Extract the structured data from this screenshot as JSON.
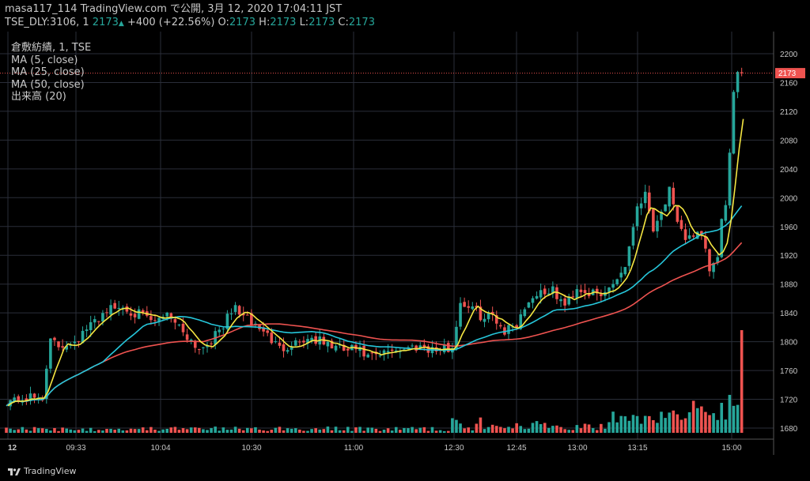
{
  "header": {
    "published_line": "masa117_114 TradingView.com で公開, 3月 12, 2020 17:04:11 JST",
    "symbol": "TSE_DLY:3106, 1",
    "last_price": "2173",
    "up_arrow": "▲",
    "change": "+400 (+22.56%)",
    "o_label": "O:",
    "o_value": "2173",
    "h_label": "H:",
    "h_value": "2173",
    "l_label": "L:",
    "l_value": "2173",
    "c_label": "C:",
    "c_value": "2173"
  },
  "legend": {
    "title": "倉敷紡績, 1, TSE",
    "ma5": "MA (5, close)",
    "ma25": "MA (25, close)",
    "ma50": "MA (50, close)",
    "volume": "出来高 (20)"
  },
  "footer": {
    "brand": "TradingView",
    "logo_icon": "tradingview-logo-icon"
  },
  "colors": {
    "background": "#000000",
    "up": "#26a69a",
    "down": "#ef5350",
    "ma5": "#f5e642",
    "ma25": "#26c6da",
    "ma50": "#ef5350",
    "grid": "#2a2e39",
    "price_tag": "#ef5350"
  },
  "chart_data": {
    "type": "candlestick",
    "title": "倉敷紡績, 1, TSE",
    "ylim": [
      1660,
      2220
    ],
    "y_ticks": [
      1680,
      1720,
      1760,
      1800,
      1840,
      1880,
      1920,
      1960,
      2000,
      2040,
      2080,
      2120,
      2160,
      2200
    ],
    "x_ticks": [
      "12",
      "09:33",
      "10:04",
      "10:30",
      "11:00",
      "12:30",
      "12:45",
      "13:00",
      "13:15",
      "15:00"
    ],
    "last_price_label": "2173",
    "grid": true,
    "volume_bars": 180,
    "control_points": [
      [
        0,
        1718
      ],
      [
        7,
        1722
      ],
      [
        9,
        1722
      ],
      [
        10,
        1768
      ],
      [
        11,
        1800
      ],
      [
        13,
        1793
      ],
      [
        18,
        1805
      ],
      [
        22,
        1828
      ],
      [
        25,
        1845
      ],
      [
        29,
        1848
      ],
      [
        33,
        1838
      ],
      [
        37,
        1826
      ],
      [
        40,
        1842
      ],
      [
        44,
        1815
      ],
      [
        48,
        1790
      ],
      [
        52,
        1808
      ],
      [
        57,
        1848
      ],
      [
        60,
        1830
      ],
      [
        64,
        1815
      ],
      [
        68,
        1790
      ],
      [
        72,
        1800
      ],
      [
        76,
        1805
      ],
      [
        80,
        1796
      ],
      [
        84,
        1788
      ],
      [
        87,
        1790
      ],
      [
        90,
        1778
      ],
      [
        93,
        1780
      ],
      [
        96,
        1790
      ],
      [
        99,
        1790
      ],
      [
        103,
        1795
      ],
      [
        107,
        1788
      ],
      [
        111,
        1792
      ],
      [
        113,
        1855
      ],
      [
        116,
        1846
      ],
      [
        119,
        1832
      ],
      [
        121,
        1838
      ],
      [
        124,
        1815
      ],
      [
        127,
        1826
      ],
      [
        130,
        1858
      ],
      [
        133,
        1870
      ],
      [
        136,
        1870
      ],
      [
        139,
        1850
      ],
      [
        142,
        1875
      ],
      [
        145,
        1868
      ],
      [
        148,
        1862
      ],
      [
        151,
        1882
      ],
      [
        154,
        1905
      ],
      [
        157,
        1990
      ],
      [
        159,
        2005
      ],
      [
        161,
        1960
      ],
      [
        163,
        1980
      ],
      [
        165,
        2010
      ],
      [
        167,
        1960
      ],
      [
        169,
        1945
      ],
      [
        171,
        1950
      ],
      [
        173,
        1945
      ],
      [
        175,
        1900
      ],
      [
        177,
        1915
      ],
      [
        178,
        1965
      ],
      [
        179,
        1995
      ],
      [
        180,
        2060
      ],
      [
        181,
        2140
      ],
      [
        182,
        2168
      ],
      [
        183,
        2173
      ]
    ]
  }
}
